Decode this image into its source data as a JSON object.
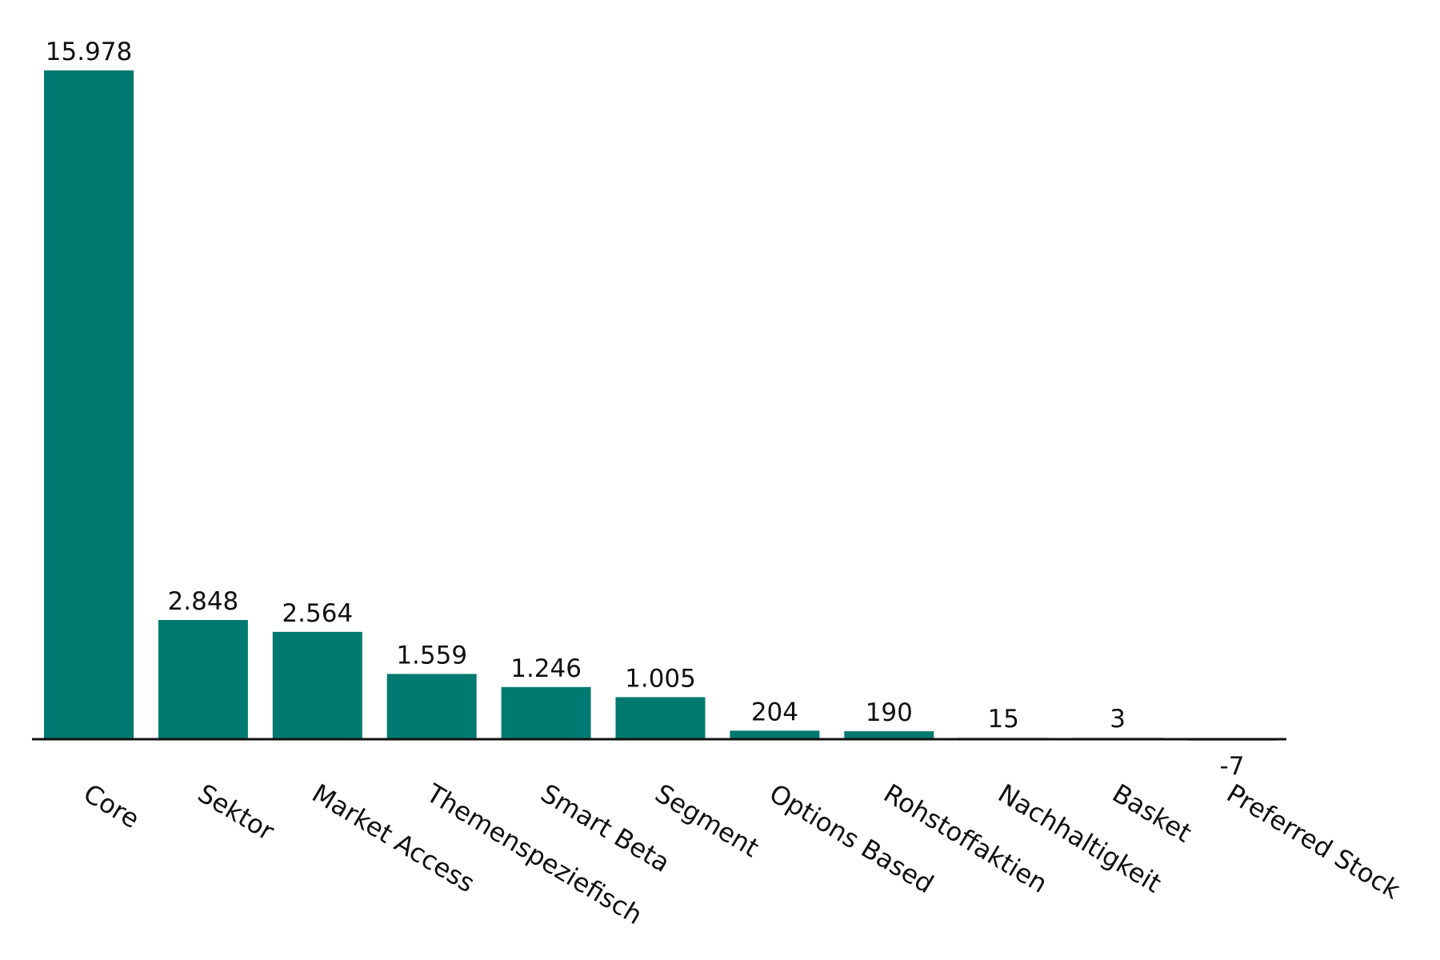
{
  "chart_data": {
    "type": "bar",
    "title": "",
    "xlabel": "",
    "ylabel": "",
    "categories": [
      "Core",
      "Sektor",
      "Market Access",
      "Themenspeziefisch",
      "Smart Beta",
      "Segment",
      "Options Based",
      "Rohstoffaktien",
      "Nachhaltigkeit",
      "Basket",
      "Preferred Stock"
    ],
    "values": [
      15978,
      2848,
      2564,
      1559,
      1246,
      1005,
      204,
      190,
      15,
      3,
      -7
    ],
    "value_labels": [
      "15.978",
      "2.848",
      "2.564",
      "1.559",
      "1.246",
      "1.005",
      "204",
      "190",
      "15",
      "3",
      "-7"
    ],
    "ylim": [
      -1000,
      16500
    ],
    "grid": false,
    "legend": "none",
    "colors": {
      "bar": "#007a70",
      "axis": "#111111",
      "text": "#111111"
    }
  }
}
